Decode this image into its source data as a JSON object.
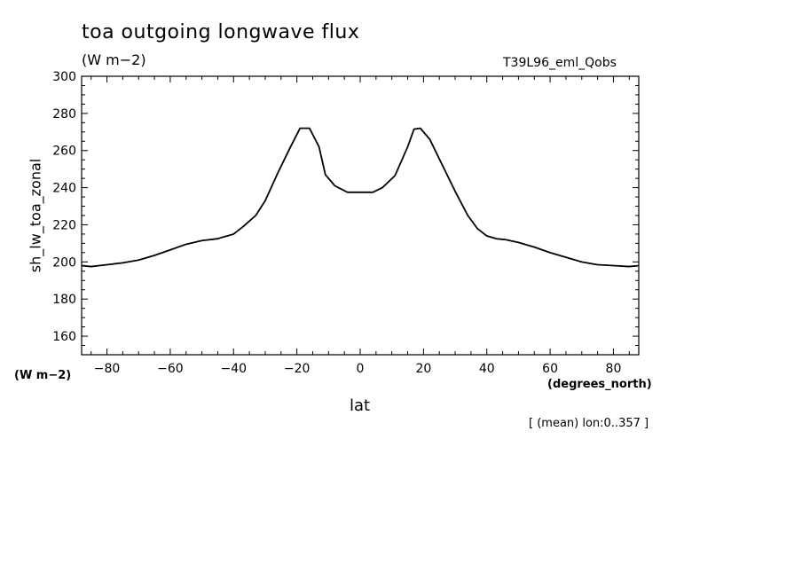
{
  "chart_data": {
    "type": "line",
    "title": "toa outgoing longwave flux",
    "units": "(W m−2)",
    "dataset": "T39L96_eml_Qobs",
    "ylabel": "sh_lw_toa_zonal",
    "yunits": "(W m−2)",
    "xlabel": "lat",
    "xunits": "(degrees_north)",
    "footnote": "[ (mean) lon:0..357 ]",
    "xlim": [
      -88,
      88
    ],
    "ylim": [
      150,
      300
    ],
    "xticks": [
      -80,
      -60,
      -40,
      -20,
      0,
      20,
      40,
      60,
      80
    ],
    "xtick_labels": [
      "−80",
      "−60",
      "−40",
      "−20",
      "0",
      "20",
      "40",
      "60",
      "80"
    ],
    "yticks": [
      160,
      180,
      200,
      220,
      240,
      260,
      280,
      300
    ],
    "ytick_labels": [
      "160",
      "180",
      "200",
      "220",
      "240",
      "260",
      "280",
      "300"
    ],
    "x": [
      -88,
      -85,
      -80,
      -75,
      -70,
      -65,
      -60,
      -55,
      -50,
      -45,
      -40,
      -37,
      -33,
      -30,
      -26,
      -22,
      -19,
      -16,
      -13,
      -11,
      -8,
      -4,
      0,
      4,
      7,
      11,
      15,
      17,
      19,
      22,
      26,
      30,
      34,
      37,
      40,
      43,
      46,
      50,
      55,
      60,
      65,
      70,
      75,
      80,
      85,
      88
    ],
    "y": [
      198,
      197.5,
      198.5,
      199.5,
      201,
      203.5,
      206.5,
      209.5,
      211.5,
      212.5,
      215,
      219,
      225,
      233,
      248,
      262,
      272,
      272,
      262,
      247,
      241,
      237.5,
      237.5,
      237.5,
      240,
      246.5,
      262,
      271.5,
      272,
      266,
      252,
      238,
      225,
      218,
      214,
      212.5,
      212,
      210.5,
      208,
      205,
      202.5,
      200,
      198.5,
      198,
      197.5,
      198
    ],
    "grid": false,
    "legend": "none",
    "line_color": "#000000"
  }
}
